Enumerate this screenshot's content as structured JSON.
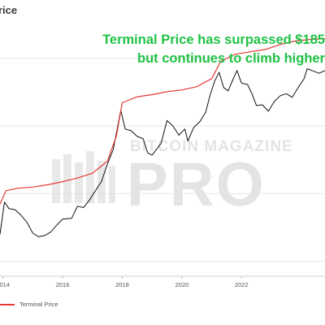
{
  "header": {
    "title_fragment": "rice"
  },
  "annotation": {
    "line1": "Terminal Price has surpassed $185",
    "line2": "but continues to climb higher"
  },
  "watermark": {
    "top": "BITCOIN MAGAZINE",
    "big": "PRO"
  },
  "legend": {
    "label": "Terminal Price"
  },
  "chart_data": {
    "type": "line",
    "title": "",
    "xlabel": "",
    "ylabel": "",
    "scale": "log",
    "xlim": [
      2013.9,
      2024.8
    ],
    "ylim": [
      60,
      300000
    ],
    "grid": {
      "horizontal": true,
      "vertical": false
    },
    "legend_position": "bottom-left",
    "x_ticks": [
      {
        "value": 2014,
        "label": "2014"
      },
      {
        "value": 2016,
        "label": "2016"
      },
      {
        "value": 2018,
        "label": "2018"
      },
      {
        "value": 2020,
        "label": "2020"
      },
      {
        "value": 2022,
        "label": "2022"
      }
    ],
    "y_gridlines": [
      100,
      1000,
      10000,
      100000
    ],
    "series": [
      {
        "name": "Terminal Price",
        "color": "#e53935",
        "points": [
          [
            2013.9,
            700
          ],
          [
            2014.1,
            1100
          ],
          [
            2014.5,
            1200
          ],
          [
            2015.0,
            1250
          ],
          [
            2015.5,
            1350
          ],
          [
            2016.0,
            1500
          ],
          [
            2016.5,
            1700
          ],
          [
            2017.0,
            2000
          ],
          [
            2017.5,
            3000
          ],
          [
            2017.8,
            7000
          ],
          [
            2018.0,
            22000
          ],
          [
            2018.5,
            27000
          ],
          [
            2019.0,
            29000
          ],
          [
            2019.5,
            32000
          ],
          [
            2020.0,
            34000
          ],
          [
            2020.5,
            38000
          ],
          [
            2021.0,
            50000
          ],
          [
            2021.3,
            90000
          ],
          [
            2021.8,
            115000
          ],
          [
            2022.3,
            125000
          ],
          [
            2022.8,
            135000
          ],
          [
            2023.3,
            160000
          ],
          [
            2023.8,
            180000
          ],
          [
            2024.3,
            190000
          ],
          [
            2024.8,
            195000
          ]
        ]
      },
      {
        "name": "",
        "color": "#111111",
        "points": [
          [
            2013.9,
            250
          ],
          [
            2014.05,
            750
          ],
          [
            2014.2,
            600
          ],
          [
            2014.4,
            580
          ],
          [
            2014.6,
            480
          ],
          [
            2014.8,
            380
          ],
          [
            2015.0,
            260
          ],
          [
            2015.2,
            230
          ],
          [
            2015.4,
            240
          ],
          [
            2015.6,
            270
          ],
          [
            2015.8,
            340
          ],
          [
            2016.0,
            420
          ],
          [
            2016.3,
            430
          ],
          [
            2016.5,
            650
          ],
          [
            2016.7,
            620
          ],
          [
            2016.9,
            800
          ],
          [
            2017.1,
            1100
          ],
          [
            2017.3,
            1500
          ],
          [
            2017.5,
            2700
          ],
          [
            2017.7,
            4500
          ],
          [
            2017.95,
            17000
          ],
          [
            2018.1,
            9000
          ],
          [
            2018.3,
            8500
          ],
          [
            2018.5,
            7000
          ],
          [
            2018.7,
            6500
          ],
          [
            2018.85,
            4000
          ],
          [
            2019.0,
            3700
          ],
          [
            2019.3,
            5500
          ],
          [
            2019.5,
            12000
          ],
          [
            2019.7,
            10000
          ],
          [
            2019.9,
            7300
          ],
          [
            2020.1,
            9000
          ],
          [
            2020.2,
            6000
          ],
          [
            2020.4,
            9500
          ],
          [
            2020.6,
            11500
          ],
          [
            2020.8,
            16000
          ],
          [
            2020.95,
            29000
          ],
          [
            2021.1,
            46000
          ],
          [
            2021.25,
            62000
          ],
          [
            2021.4,
            37000
          ],
          [
            2021.55,
            33000
          ],
          [
            2021.7,
            47000
          ],
          [
            2021.85,
            66000
          ],
          [
            2022.0,
            43000
          ],
          [
            2022.2,
            41000
          ],
          [
            2022.35,
            30000
          ],
          [
            2022.5,
            20000
          ],
          [
            2022.7,
            20500
          ],
          [
            2022.9,
            16500
          ],
          [
            2023.1,
            23000
          ],
          [
            2023.3,
            28000
          ],
          [
            2023.5,
            30000
          ],
          [
            2023.7,
            26500
          ],
          [
            2023.9,
            37000
          ],
          [
            2024.1,
            50000
          ],
          [
            2024.2,
            70000
          ],
          [
            2024.4,
            65000
          ],
          [
            2024.6,
            60000
          ],
          [
            2024.8,
            66000
          ]
        ]
      }
    ]
  }
}
